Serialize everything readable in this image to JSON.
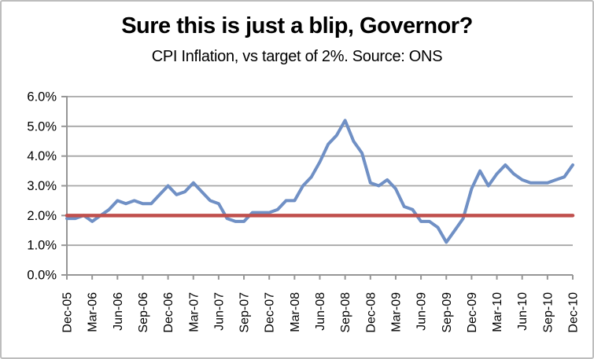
{
  "chart_data": {
    "type": "line",
    "title": "Sure this is just a blip, Governor?",
    "subtitle": "CPI Inflation, vs target of 2%. Source: ONS",
    "x_frequency": "monthly",
    "x_range": [
      "Dec-05",
      "Dec-10"
    ],
    "x_tick_labels": [
      "Dec-05",
      "Mar-06",
      "Jun-06",
      "Sep-06",
      "Dec-06",
      "Mar-07",
      "Jun-07",
      "Sep-07",
      "Dec-07",
      "Mar-08",
      "Jun-08",
      "Sep-08",
      "Dec-08",
      "Mar-09",
      "Jun-09",
      "Sep-09",
      "Dec-09",
      "Mar-10",
      "Jun-10",
      "Sep-10",
      "Dec-10"
    ],
    "x_tick_step_months": 3,
    "y_tick_labels": [
      "0.0%",
      "1.0%",
      "2.0%",
      "3.0%",
      "4.0%",
      "5.0%",
      "6.0%"
    ],
    "ylim": [
      0,
      6
    ],
    "grid": "horizontal",
    "legend": "none",
    "series": [
      {
        "name": "CPI Inflation (%)",
        "color": "#7090C5",
        "line_width": 4,
        "values": [
          1.9,
          1.9,
          2.0,
          1.8,
          2.0,
          2.2,
          2.5,
          2.4,
          2.5,
          2.4,
          2.4,
          2.7,
          3.0,
          2.7,
          2.8,
          3.1,
          2.8,
          2.5,
          2.4,
          1.9,
          1.8,
          1.8,
          2.1,
          2.1,
          2.1,
          2.2,
          2.5,
          2.5,
          3.0,
          3.3,
          3.8,
          4.4,
          4.7,
          5.2,
          4.5,
          4.1,
          3.1,
          3.0,
          3.2,
          2.9,
          2.3,
          2.2,
          1.8,
          1.8,
          1.6,
          1.1,
          1.5,
          1.9,
          2.9,
          3.5,
          3.0,
          3.4,
          3.7,
          3.4,
          3.2,
          3.1,
          3.1,
          3.1,
          3.2,
          3.3,
          3.7
        ]
      },
      {
        "name": "Target (2%)",
        "color": "#C0504D",
        "line_width": 4.5,
        "constant_value": 2.0
      }
    ],
    "colors": {
      "grid": "#A6A6A6",
      "axis": "#969696",
      "text": "#000000",
      "background": "#FFFFFF",
      "frame_border": "#BDBDBD"
    }
  }
}
